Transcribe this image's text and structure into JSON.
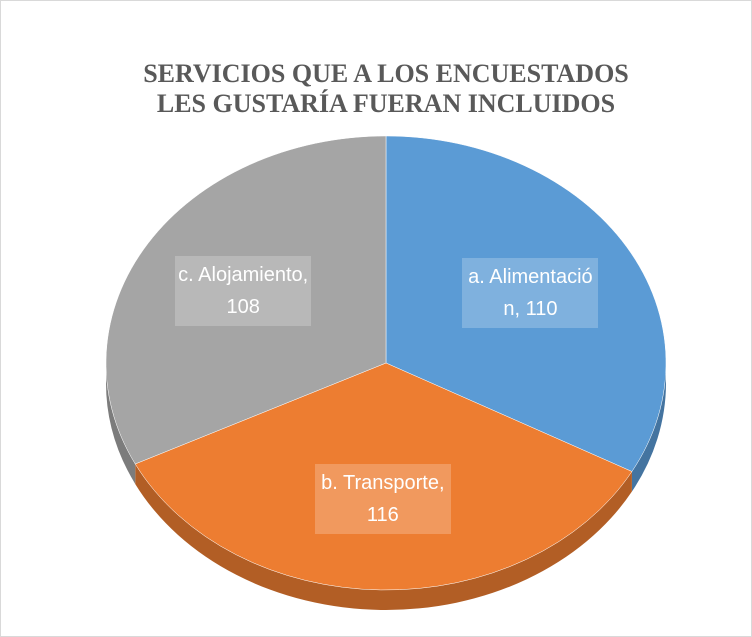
{
  "chart_data": {
    "type": "pie3d",
    "title": "SERVICIOS QUE A LOS ENCUESTADOS LES GUSTARÍA FUERAN INCLUIDOS",
    "categories": [
      "a.  Alimentación",
      "b. Transporte",
      "c. Alojamiento"
    ],
    "values": [
      110,
      116,
      108
    ],
    "value_labels": [
      "a.  Alimentación, 110",
      "b. Transporte, 116",
      "c. Alojamiento, 108"
    ],
    "colors": [
      "#5b9bd5",
      "#ed7d31",
      "#a5a5a5"
    ]
  }
}
